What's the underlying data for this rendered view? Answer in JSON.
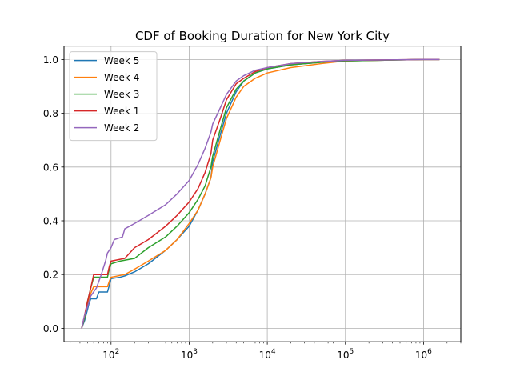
{
  "chart_data": {
    "type": "line",
    "title": "CDF of Booking Duration for New York City",
    "xlabel": "",
    "ylabel": "",
    "xscale": "log",
    "xlim": [
      25,
      3000000
    ],
    "ylim": [
      -0.05,
      1.05
    ],
    "grid": true,
    "legend_position": "top-left",
    "x_ticks": [
      {
        "value": 100,
        "base": "10",
        "exp": "2"
      },
      {
        "value": 1000,
        "base": "10",
        "exp": "3"
      },
      {
        "value": 10000,
        "base": "10",
        "exp": "4"
      },
      {
        "value": 100000,
        "base": "10",
        "exp": "5"
      },
      {
        "value": 1000000,
        "base": "10",
        "exp": "6"
      }
    ],
    "y_ticks": [
      {
        "value": 0.0,
        "label": "0.0"
      },
      {
        "value": 0.2,
        "label": "0.2"
      },
      {
        "value": 0.4,
        "label": "0.4"
      },
      {
        "value": 0.6,
        "label": "0.6"
      },
      {
        "value": 0.8,
        "label": "0.8"
      },
      {
        "value": 1.0,
        "label": "1.0"
      }
    ],
    "series": [
      {
        "name": "Week 5",
        "color": "#1f77b4",
        "points": [
          [
            42,
            0
          ],
          [
            46,
            0.03
          ],
          [
            50,
            0.07
          ],
          [
            52,
            0.09
          ],
          [
            55,
            0.11
          ],
          [
            65,
            0.11
          ],
          [
            70,
            0.135
          ],
          [
            90,
            0.135
          ],
          [
            95,
            0.16
          ],
          [
            100,
            0.185
          ],
          [
            130,
            0.19
          ],
          [
            150,
            0.195
          ],
          [
            200,
            0.21
          ],
          [
            300,
            0.24
          ],
          [
            500,
            0.29
          ],
          [
            700,
            0.33
          ],
          [
            1000,
            0.38
          ],
          [
            1300,
            0.44
          ],
          [
            1600,
            0.5
          ],
          [
            1900,
            0.56
          ],
          [
            2000,
            0.62
          ],
          [
            2500,
            0.72
          ],
          [
            3000,
            0.8
          ],
          [
            4000,
            0.88
          ],
          [
            5000,
            0.92
          ],
          [
            7000,
            0.95
          ],
          [
            10000,
            0.965
          ],
          [
            20000,
            0.98
          ],
          [
            50000,
            0.99
          ],
          [
            100000,
            0.995
          ],
          [
            1000000,
            1.0
          ],
          [
            1600000,
            1.0
          ]
        ]
      },
      {
        "name": "Week 4",
        "color": "#ff7f0e",
        "points": [
          [
            42,
            0
          ],
          [
            46,
            0.04
          ],
          [
            50,
            0.09
          ],
          [
            55,
            0.13
          ],
          [
            60,
            0.155
          ],
          [
            90,
            0.155
          ],
          [
            95,
            0.175
          ],
          [
            100,
            0.19
          ],
          [
            150,
            0.2
          ],
          [
            200,
            0.22
          ],
          [
            300,
            0.25
          ],
          [
            500,
            0.29
          ],
          [
            700,
            0.33
          ],
          [
            1000,
            0.39
          ],
          [
            1300,
            0.44
          ],
          [
            1600,
            0.5
          ],
          [
            1900,
            0.56
          ],
          [
            2000,
            0.6
          ],
          [
            2500,
            0.7
          ],
          [
            3000,
            0.78
          ],
          [
            4000,
            0.86
          ],
          [
            5000,
            0.9
          ],
          [
            7000,
            0.93
          ],
          [
            10000,
            0.95
          ],
          [
            20000,
            0.97
          ],
          [
            50000,
            0.985
          ],
          [
            100000,
            0.995
          ],
          [
            1000000,
            1.0
          ],
          [
            1600000,
            1.0
          ]
        ]
      },
      {
        "name": "Week 3",
        "color": "#2ca02c",
        "points": [
          [
            42,
            0
          ],
          [
            46,
            0.04
          ],
          [
            50,
            0.1
          ],
          [
            55,
            0.15
          ],
          [
            60,
            0.19
          ],
          [
            90,
            0.19
          ],
          [
            95,
            0.22
          ],
          [
            100,
            0.24
          ],
          [
            130,
            0.25
          ],
          [
            200,
            0.26
          ],
          [
            300,
            0.3
          ],
          [
            500,
            0.34
          ],
          [
            700,
            0.38
          ],
          [
            1000,
            0.43
          ],
          [
            1300,
            0.48
          ],
          [
            1600,
            0.53
          ],
          [
            1900,
            0.6
          ],
          [
            2000,
            0.64
          ],
          [
            2500,
            0.74
          ],
          [
            3000,
            0.82
          ],
          [
            4000,
            0.89
          ],
          [
            5000,
            0.92
          ],
          [
            7000,
            0.95
          ],
          [
            10000,
            0.965
          ],
          [
            20000,
            0.98
          ],
          [
            50000,
            0.99
          ],
          [
            100000,
            0.995
          ],
          [
            1000000,
            1.0
          ],
          [
            1600000,
            1.0
          ]
        ]
      },
      {
        "name": "Week 1",
        "color": "#d62728",
        "points": [
          [
            42,
            0
          ],
          [
            46,
            0.05
          ],
          [
            50,
            0.1
          ],
          [
            55,
            0.15
          ],
          [
            60,
            0.2
          ],
          [
            90,
            0.2
          ],
          [
            95,
            0.23
          ],
          [
            100,
            0.25
          ],
          [
            150,
            0.26
          ],
          [
            200,
            0.3
          ],
          [
            300,
            0.33
          ],
          [
            500,
            0.38
          ],
          [
            700,
            0.42
          ],
          [
            1000,
            0.47
          ],
          [
            1300,
            0.52
          ],
          [
            1600,
            0.58
          ],
          [
            1900,
            0.65
          ],
          [
            2000,
            0.7
          ],
          [
            2500,
            0.78
          ],
          [
            3000,
            0.85
          ],
          [
            4000,
            0.91
          ],
          [
            5000,
            0.93
          ],
          [
            7000,
            0.955
          ],
          [
            10000,
            0.97
          ],
          [
            20000,
            0.985
          ],
          [
            50000,
            0.993
          ],
          [
            100000,
            0.997
          ],
          [
            1000000,
            1.0
          ],
          [
            1600000,
            1.0
          ]
        ]
      },
      {
        "name": "Week 2",
        "color": "#9467bd",
        "points": [
          [
            42,
            0
          ],
          [
            46,
            0.05
          ],
          [
            50,
            0.08
          ],
          [
            55,
            0.12
          ],
          [
            65,
            0.15
          ],
          [
            75,
            0.2
          ],
          [
            85,
            0.25
          ],
          [
            90,
            0.28
          ],
          [
            100,
            0.3
          ],
          [
            110,
            0.33
          ],
          [
            140,
            0.34
          ],
          [
            150,
            0.37
          ],
          [
            200,
            0.39
          ],
          [
            300,
            0.42
          ],
          [
            500,
            0.46
          ],
          [
            700,
            0.5
          ],
          [
            1000,
            0.55
          ],
          [
            1300,
            0.61
          ],
          [
            1600,
            0.67
          ],
          [
            1900,
            0.73
          ],
          [
            2000,
            0.76
          ],
          [
            2500,
            0.82
          ],
          [
            3000,
            0.87
          ],
          [
            4000,
            0.92
          ],
          [
            5000,
            0.94
          ],
          [
            7000,
            0.96
          ],
          [
            10000,
            0.97
          ],
          [
            20000,
            0.985
          ],
          [
            50000,
            0.993
          ],
          [
            100000,
            0.997
          ],
          [
            1000000,
            1.0
          ],
          [
            1600000,
            1.0
          ]
        ]
      }
    ]
  }
}
